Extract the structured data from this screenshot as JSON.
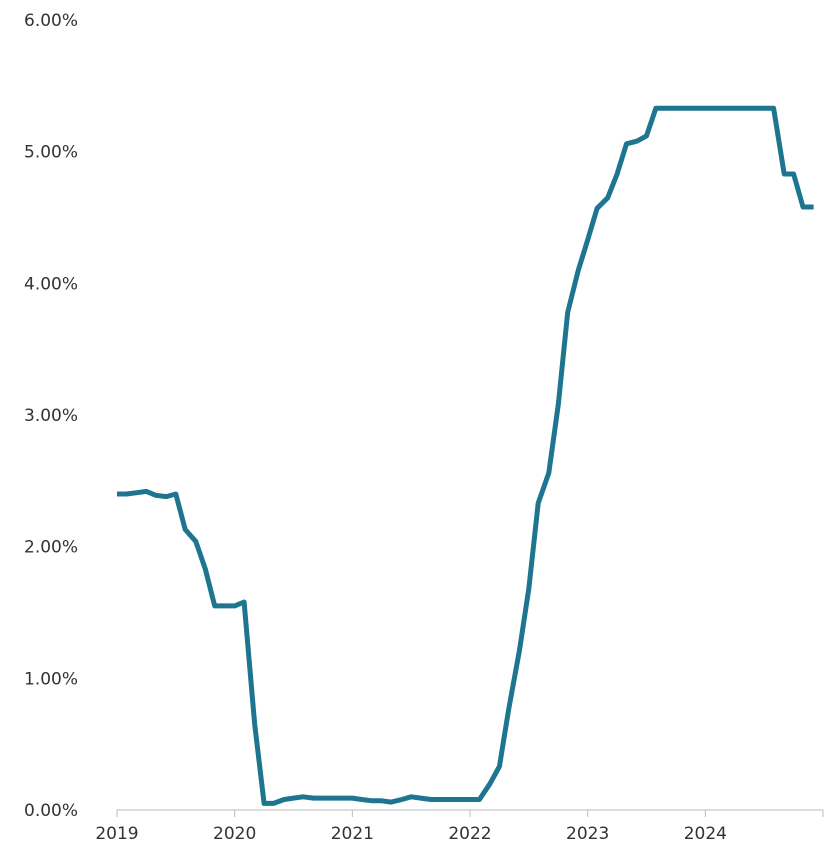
{
  "chart_data": {
    "type": "line",
    "title": "",
    "xlabel": "",
    "ylabel": "",
    "xlim": [
      2019,
      2025
    ],
    "ylim": [
      0,
      6
    ],
    "y_ticks": [
      "0.00%",
      "1.00%",
      "2.00%",
      "3.00%",
      "4.00%",
      "5.00%",
      "6.00%"
    ],
    "x_ticks": [
      "2019",
      "2020",
      "2021",
      "2022",
      "2023",
      "2024"
    ],
    "grid": false,
    "colors": {
      "line": "#1e7590",
      "axis": "#bbbbbb",
      "text": "#333333"
    },
    "series": [
      {
        "points": [
          [
            2019.0,
            2.4
          ],
          [
            2019.08,
            2.4
          ],
          [
            2019.17,
            2.41
          ],
          [
            2019.25,
            2.42
          ],
          [
            2019.33,
            2.39
          ],
          [
            2019.42,
            2.38
          ],
          [
            2019.5,
            2.4
          ],
          [
            2019.58,
            2.13
          ],
          [
            2019.67,
            2.04
          ],
          [
            2019.75,
            1.83
          ],
          [
            2019.83,
            1.55
          ],
          [
            2019.92,
            1.55
          ],
          [
            2020.0,
            1.55
          ],
          [
            2020.08,
            1.58
          ],
          [
            2020.17,
            0.65
          ],
          [
            2020.25,
            0.05
          ],
          [
            2020.33,
            0.05
          ],
          [
            2020.42,
            0.08
          ],
          [
            2020.5,
            0.09
          ],
          [
            2020.58,
            0.1
          ],
          [
            2020.67,
            0.09
          ],
          [
            2020.75,
            0.09
          ],
          [
            2020.83,
            0.09
          ],
          [
            2020.92,
            0.09
          ],
          [
            2021.0,
            0.09
          ],
          [
            2021.08,
            0.08
          ],
          [
            2021.17,
            0.07
          ],
          [
            2021.25,
            0.07
          ],
          [
            2021.33,
            0.06
          ],
          [
            2021.42,
            0.08
          ],
          [
            2021.5,
            0.1
          ],
          [
            2021.58,
            0.09
          ],
          [
            2021.67,
            0.08
          ],
          [
            2021.75,
            0.08
          ],
          [
            2021.83,
            0.08
          ],
          [
            2021.92,
            0.08
          ],
          [
            2022.0,
            0.08
          ],
          [
            2022.08,
            0.08
          ],
          [
            2022.17,
            0.2
          ],
          [
            2022.25,
            0.33
          ],
          [
            2022.33,
            0.77
          ],
          [
            2022.42,
            1.21
          ],
          [
            2022.5,
            1.68
          ],
          [
            2022.58,
            2.33
          ],
          [
            2022.67,
            2.56
          ],
          [
            2022.75,
            3.08
          ],
          [
            2022.83,
            3.78
          ],
          [
            2022.92,
            4.1
          ],
          [
            2023.0,
            4.33
          ],
          [
            2023.08,
            4.57
          ],
          [
            2023.17,
            4.65
          ],
          [
            2023.25,
            4.83
          ],
          [
            2023.33,
            5.06
          ],
          [
            2023.42,
            5.08
          ],
          [
            2023.5,
            5.12
          ],
          [
            2023.58,
            5.33
          ],
          [
            2023.67,
            5.33
          ],
          [
            2023.75,
            5.33
          ],
          [
            2023.83,
            5.33
          ],
          [
            2023.92,
            5.33
          ],
          [
            2024.0,
            5.33
          ],
          [
            2024.08,
            5.33
          ],
          [
            2024.17,
            5.33
          ],
          [
            2024.25,
            5.33
          ],
          [
            2024.33,
            5.33
          ],
          [
            2024.42,
            5.33
          ],
          [
            2024.5,
            5.33
          ],
          [
            2024.58,
            5.33
          ],
          [
            2024.67,
            4.83
          ],
          [
            2024.75,
            4.83
          ],
          [
            2024.83,
            4.58
          ],
          [
            2024.92,
            4.58
          ]
        ]
      }
    ]
  }
}
